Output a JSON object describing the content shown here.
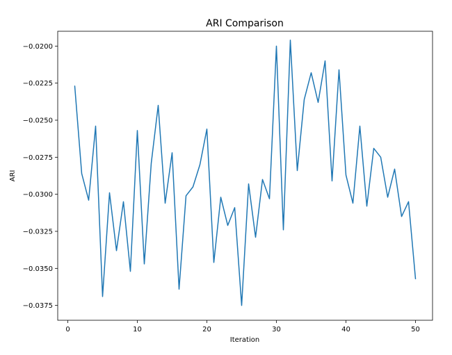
{
  "chart_data": {
    "type": "line",
    "title": "ARI Comparison",
    "xlabel": "Iteration",
    "ylabel": "ARI",
    "xlim": [
      -1.45,
      52.45
    ],
    "ylim": [
      -0.0385,
      -0.019
    ],
    "xticks": [
      0,
      10,
      20,
      30,
      40,
      50
    ],
    "xtick_labels": [
      "0",
      "10",
      "20",
      "30",
      "40",
      "50"
    ],
    "yticks": [
      -0.0375,
      -0.035,
      -0.0325,
      -0.03,
      -0.0275,
      -0.025,
      -0.0225,
      -0.02
    ],
    "ytick_labels": [
      "−0.0375",
      "−0.0350",
      "−0.0325",
      "−0.0300",
      "−0.0275",
      "−0.0250",
      "−0.0225",
      "−0.0200"
    ],
    "grid": false,
    "color": "#1f77b4",
    "x": [
      1,
      2,
      3,
      4,
      5,
      6,
      7,
      8,
      9,
      10,
      11,
      12,
      13,
      14,
      15,
      16,
      17,
      18,
      19,
      20,
      21,
      22,
      23,
      24,
      25,
      26,
      27,
      28,
      29,
      30,
      31,
      32,
      33,
      34,
      35,
      36,
      37,
      38,
      39,
      40,
      41,
      42,
      43,
      44,
      45,
      46,
      47,
      48,
      49,
      50
    ],
    "series": [
      {
        "values": [
          -0.0227,
          -0.0286,
          -0.0304,
          -0.0254,
          -0.0369,
          -0.0299,
          -0.0338,
          -0.0305,
          -0.0352,
          -0.0257,
          -0.0347,
          -0.0279,
          -0.024,
          -0.0306,
          -0.0272,
          -0.0364,
          -0.0301,
          -0.0295,
          -0.028,
          -0.0256,
          -0.0346,
          -0.0302,
          -0.0321,
          -0.0309,
          -0.0375,
          -0.0293,
          -0.0329,
          -0.029,
          -0.0303,
          -0.02,
          -0.0324,
          -0.0196,
          -0.0284,
          -0.0236,
          -0.0218,
          -0.0238,
          -0.021,
          -0.0291,
          -0.0216,
          -0.0287,
          -0.0306,
          -0.0254,
          -0.0308,
          -0.0269,
          -0.0275,
          -0.0302,
          -0.0283,
          -0.0315,
          -0.0305,
          -0.0357
        ]
      }
    ]
  }
}
